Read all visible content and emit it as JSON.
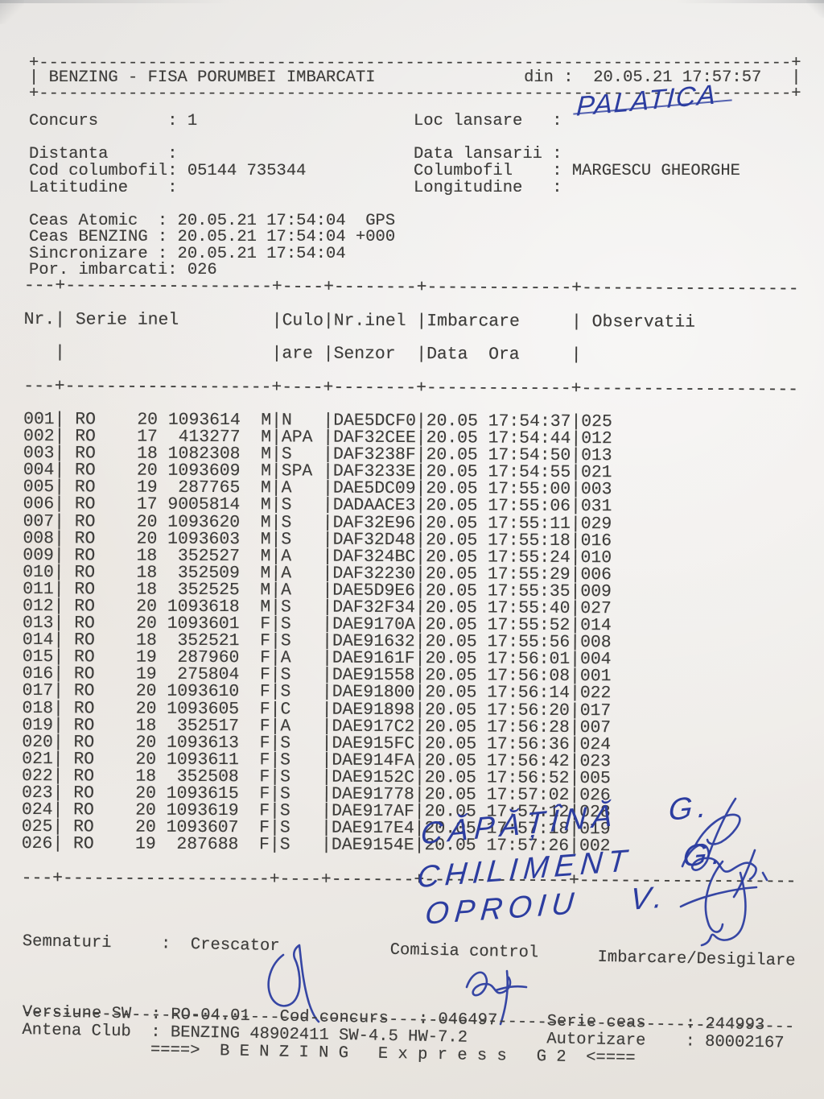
{
  "misc": {
    "colon": ":",
    "pipe": "|"
  },
  "header": {
    "title": "BENZING - FISA PORUMBEI IMBARCATI",
    "din_label": "din :",
    "din_value": "20.05.21 17:57:57"
  },
  "info": {
    "concurs_label": "Concurs",
    "concurs_value": "1",
    "loc_lansare_label": "Loc lansare",
    "loc_lansare_handwritten": "PALATICA",
    "distanta_label": "Distanta",
    "data_lansarii_label": "Data lansarii",
    "cod_columbofil_label": "Cod columbofil",
    "cod_columbofil_value": "05144 735344",
    "columbofil_label": "Columbofil",
    "columbofil_value": "MARGESCU GHEORGHE",
    "latitudine_label": "Latitudine",
    "longitudine_label": "Longitudine",
    "ceas_atomic_label": "Ceas Atomic",
    "ceas_atomic_value": "20.05.21 17:54:04  GPS",
    "ceas_benzing_label": "Ceas BENZING",
    "ceas_benzing_value": "20.05.21 17:54:04 +000",
    "sincronizare_label": "Sincronizare",
    "sincronizare_value": "20.05.21 17:54:04",
    "por_imbarcati_label": "Por. imbarcati",
    "por_imbarcati_value": "026"
  },
  "table": {
    "headers": {
      "nr": "Nr.",
      "serie": "Serie inel",
      "culoare1": "Culo",
      "culoare2": "are",
      "senzor1": "Nr.inel",
      "senzor2": "Senzor",
      "imbarcare1": "Imbarcare",
      "imbarcare2": "Data  Ora",
      "observatii": "Observatii"
    },
    "rows": [
      {
        "nr": "001",
        "country": "RO",
        "year": "20",
        "ring": "1093614",
        "sex": "M",
        "color": "N",
        "sensor": "DAE5DCF0",
        "date": "20.05",
        "time": "17:54:37",
        "obs": "025"
      },
      {
        "nr": "002",
        "country": "RO",
        "year": "17",
        "ring": "413277",
        "sex": "M",
        "color": "APA",
        "sensor": "DAF32CEE",
        "date": "20.05",
        "time": "17:54:44",
        "obs": "012"
      },
      {
        "nr": "003",
        "country": "RO",
        "year": "18",
        "ring": "1082308",
        "sex": "M",
        "color": "S",
        "sensor": "DAF3238F",
        "date": "20.05",
        "time": "17:54:50",
        "obs": "013"
      },
      {
        "nr": "004",
        "country": "RO",
        "year": "20",
        "ring": "1093609",
        "sex": "M",
        "color": "SPA",
        "sensor": "DAF3233E",
        "date": "20.05",
        "time": "17:54:55",
        "obs": "021"
      },
      {
        "nr": "005",
        "country": "RO",
        "year": "19",
        "ring": "287765",
        "sex": "M",
        "color": "A",
        "sensor": "DAE5DC09",
        "date": "20.05",
        "time": "17:55:00",
        "obs": "003"
      },
      {
        "nr": "006",
        "country": "RO",
        "year": "17",
        "ring": "9005814",
        "sex": "M",
        "color": "S",
        "sensor": "DADAACE3",
        "date": "20.05",
        "time": "17:55:06",
        "obs": "031"
      },
      {
        "nr": "007",
        "country": "RO",
        "year": "20",
        "ring": "1093620",
        "sex": "M",
        "color": "S",
        "sensor": "DAF32E96",
        "date": "20.05",
        "time": "17:55:11",
        "obs": "029"
      },
      {
        "nr": "008",
        "country": "RO",
        "year": "20",
        "ring": "1093603",
        "sex": "M",
        "color": "S",
        "sensor": "DAF32D48",
        "date": "20.05",
        "time": "17:55:18",
        "obs": "016"
      },
      {
        "nr": "009",
        "country": "RO",
        "year": "18",
        "ring": "352527",
        "sex": "M",
        "color": "A",
        "sensor": "DAF324BC",
        "date": "20.05",
        "time": "17:55:24",
        "obs": "010"
      },
      {
        "nr": "010",
        "country": "RO",
        "year": "18",
        "ring": "352509",
        "sex": "M",
        "color": "A",
        "sensor": "DAF32230",
        "date": "20.05",
        "time": "17:55:29",
        "obs": "006"
      },
      {
        "nr": "011",
        "country": "RO",
        "year": "18",
        "ring": "352525",
        "sex": "M",
        "color": "A",
        "sensor": "DAE5D9E6",
        "date": "20.05",
        "time": "17:55:35",
        "obs": "009"
      },
      {
        "nr": "012",
        "country": "RO",
        "year": "20",
        "ring": "1093618",
        "sex": "M",
        "color": "S",
        "sensor": "DAF32F34",
        "date": "20.05",
        "time": "17:55:40",
        "obs": "027"
      },
      {
        "nr": "013",
        "country": "RO",
        "year": "20",
        "ring": "1093601",
        "sex": "F",
        "color": "S",
        "sensor": "DAE9170A",
        "date": "20.05",
        "time": "17:55:52",
        "obs": "014"
      },
      {
        "nr": "014",
        "country": "RO",
        "year": "18",
        "ring": "352521",
        "sex": "F",
        "color": "S",
        "sensor": "DAE91632",
        "date": "20.05",
        "time": "17:55:56",
        "obs": "008"
      },
      {
        "nr": "015",
        "country": "RO",
        "year": "19",
        "ring": "287960",
        "sex": "F",
        "color": "A",
        "sensor": "DAE9161F",
        "date": "20.05",
        "time": "17:56:01",
        "obs": "004"
      },
      {
        "nr": "016",
        "country": "RO",
        "year": "19",
        "ring": "275804",
        "sex": "F",
        "color": "S",
        "sensor": "DAE91558",
        "date": "20.05",
        "time": "17:56:08",
        "obs": "001"
      },
      {
        "nr": "017",
        "country": "RO",
        "year": "20",
        "ring": "1093610",
        "sex": "F",
        "color": "S",
        "sensor": "DAE91800",
        "date": "20.05",
        "time": "17:56:14",
        "obs": "022"
      },
      {
        "nr": "018",
        "country": "RO",
        "year": "20",
        "ring": "1093605",
        "sex": "F",
        "color": "C",
        "sensor": "DAE91898",
        "date": "20.05",
        "time": "17:56:20",
        "obs": "017"
      },
      {
        "nr": "019",
        "country": "RO",
        "year": "18",
        "ring": "352517",
        "sex": "F",
        "color": "A",
        "sensor": "DAE917C2",
        "date": "20.05",
        "time": "17:56:28",
        "obs": "007"
      },
      {
        "nr": "020",
        "country": "RO",
        "year": "20",
        "ring": "1093613",
        "sex": "F",
        "color": "S",
        "sensor": "DAE915FC",
        "date": "20.05",
        "time": "17:56:36",
        "obs": "024"
      },
      {
        "nr": "021",
        "country": "RO",
        "year": "20",
        "ring": "1093611",
        "sex": "F",
        "color": "S",
        "sensor": "DAE914FA",
        "date": "20.05",
        "time": "17:56:42",
        "obs": "023"
      },
      {
        "nr": "022",
        "country": "RO",
        "year": "18",
        "ring": "352508",
        "sex": "F",
        "color": "S",
        "sensor": "DAE9152C",
        "date": "20.05",
        "time": "17:56:52",
        "obs": "005"
      },
      {
        "nr": "023",
        "country": "RO",
        "year": "20",
        "ring": "1093615",
        "sex": "F",
        "color": "S",
        "sensor": "DAE91778",
        "date": "20.05",
        "time": "17:57:02",
        "obs": "026"
      },
      {
        "nr": "024",
        "country": "RO",
        "year": "20",
        "ring": "1093619",
        "sex": "F",
        "color": "S",
        "sensor": "DAE917AF",
        "date": "20.05",
        "time": "17:57:12",
        "obs": "028"
      },
      {
        "nr": "025",
        "country": "RO",
        "year": "20",
        "ring": "1093607",
        "sex": "F",
        "color": "S",
        "sensor": "DAE917E4",
        "date": "20.05",
        "time": "17:57:18",
        "obs": "019"
      },
      {
        "nr": "026",
        "country": "RO",
        "year": "19",
        "ring": "287688",
        "sex": "F",
        "color": "S",
        "sensor": "DAE9154E",
        "date": "20.05",
        "time": "17:57:26",
        "obs": "002"
      }
    ]
  },
  "signatures": {
    "names": [
      "CĂPĂȚÎNĂ G.",
      "CHILIMENT G.",
      "OPROIU V."
    ],
    "semnaturi_label": "Semnaturi",
    "crescator_label": "Crescator",
    "comisia_label": "Comisia control",
    "imbarcare_label": "Imbarcare/Desigilare"
  },
  "footer": {
    "versiune_label": "Versiune SW",
    "versiune_value": "RO-04.01",
    "cod_concurs_label": "Cod concurs",
    "cod_concurs_value": "046497",
    "serie_ceas_label": "Serie ceas",
    "serie_ceas_value": "244993",
    "antena_label": "Antena Club",
    "antena_value": "BENZING 48902411 SW-4.5 HW-7.2",
    "autorizare_label": "Autorizare",
    "autorizare_value": "80002167",
    "brand": "====>  B E N Z I N G   E x p r e s s   G 2  <===="
  }
}
